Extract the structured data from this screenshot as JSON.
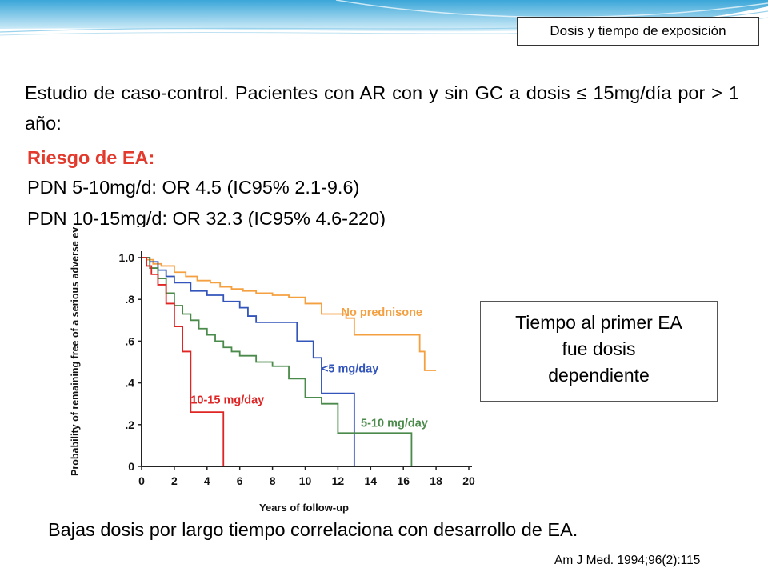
{
  "slide": {
    "topic": "Dosis y tiempo de exposición",
    "intro": "Estudio de caso-control. Pacientes con AR con y sin GC a dosis ≤ 15mg/día por > 1 año:",
    "risk_title": "Riesgo de EA:",
    "risk_lines": [
      "PDN 5-10mg/d: OR 4.5 (IC95% 2.1-9.6)",
      "PDN 10-15mg/d: OR 32.3 (IC95% 4.6-220)"
    ],
    "callout": [
      "Tiempo al primer EA",
      "fue dosis",
      "dependiente"
    ],
    "conclusion": "Bajas dosis por largo tiempo correlaciona con desarrollo de EA.",
    "citation": "Am J Med. 1994;96(2):115"
  },
  "colors": {
    "no_prednisone": "#f5a040",
    "lt5": "#3355bb",
    "d5_10": "#4a8a4a",
    "d10_15": "#e02525",
    "risk_title": "#e23b2e"
  },
  "chart_data": {
    "type": "line",
    "step": true,
    "title": "",
    "xlabel": "Years of follow-up",
    "ylabel": "Probability of remaining free of a serious adverse event",
    "xlim": [
      0,
      20
    ],
    "ylim": [
      0,
      1.0
    ],
    "xticks": [
      0,
      2,
      4,
      6,
      8,
      10,
      12,
      14,
      16,
      18,
      20
    ],
    "yticks": [
      0,
      0.2,
      0.4,
      0.6,
      0.8,
      1.0
    ],
    "ytick_labels": [
      "0",
      ".2",
      ".4",
      ".6",
      ".8",
      "1.0"
    ],
    "series": [
      {
        "name": "No prednisone",
        "color": "#f5a040",
        "x": [
          0,
          0.3,
          0.7,
          1.2,
          2.0,
          2.7,
          3.4,
          4.2,
          4.8,
          5.5,
          6.2,
          7.0,
          8.0,
          9.0,
          10.0,
          11.0,
          12.5,
          13.0,
          17.0,
          17.3,
          18.0
        ],
        "y": [
          1.0,
          0.99,
          0.97,
          0.96,
          0.93,
          0.91,
          0.89,
          0.88,
          0.86,
          0.85,
          0.84,
          0.83,
          0.82,
          0.81,
          0.78,
          0.73,
          0.71,
          0.63,
          0.55,
          0.46,
          0.46
        ]
      },
      {
        "name": "<5 mg/day",
        "color": "#3355bb",
        "x": [
          0,
          0.5,
          1.0,
          1.5,
          2.0,
          3.0,
          4.0,
          5.0,
          6.0,
          6.5,
          7.0,
          8.0,
          9.5,
          10.5,
          11.0,
          13.0,
          13.0
        ],
        "y": [
          1.0,
          0.98,
          0.94,
          0.91,
          0.88,
          0.84,
          0.82,
          0.79,
          0.76,
          0.72,
          0.69,
          0.69,
          0.6,
          0.52,
          0.35,
          0.35,
          0.0
        ]
      },
      {
        "name": "5-10 mg/day",
        "color": "#4a8a4a",
        "x": [
          0,
          0.5,
          1.0,
          1.5,
          2.0,
          2.5,
          3.0,
          3.5,
          4.0,
          4.5,
          5.0,
          5.5,
          6.0,
          7.0,
          8.0,
          9.0,
          10.0,
          11.0,
          12.0,
          16.0,
          16.5
        ],
        "y": [
          1.0,
          0.95,
          0.9,
          0.83,
          0.77,
          0.73,
          0.7,
          0.66,
          0.63,
          0.6,
          0.57,
          0.55,
          0.53,
          0.5,
          0.48,
          0.42,
          0.33,
          0.3,
          0.16,
          0.16,
          0.0
        ]
      },
      {
        "name": "10-15 mg/day",
        "color": "#e02525",
        "x": [
          0,
          0.3,
          0.6,
          1.0,
          1.5,
          2.0,
          2.5,
          3.0,
          5.0,
          5.0
        ],
        "y": [
          1.0,
          0.96,
          0.92,
          0.87,
          0.78,
          0.67,
          0.55,
          0.26,
          0.26,
          0.0
        ]
      }
    ],
    "labels": [
      {
        "text": "No prednisone",
        "x": 12.2,
        "y": 0.72,
        "series": 0
      },
      {
        "text": "<5 mg/day",
        "x": 11.0,
        "y": 0.45,
        "series": 1
      },
      {
        "text": "5-10 mg/day",
        "x": 13.4,
        "y": 0.19,
        "series": 2
      },
      {
        "text": "10-15 mg/day",
        "x": 3.0,
        "y": 0.3,
        "series": 3
      }
    ]
  }
}
